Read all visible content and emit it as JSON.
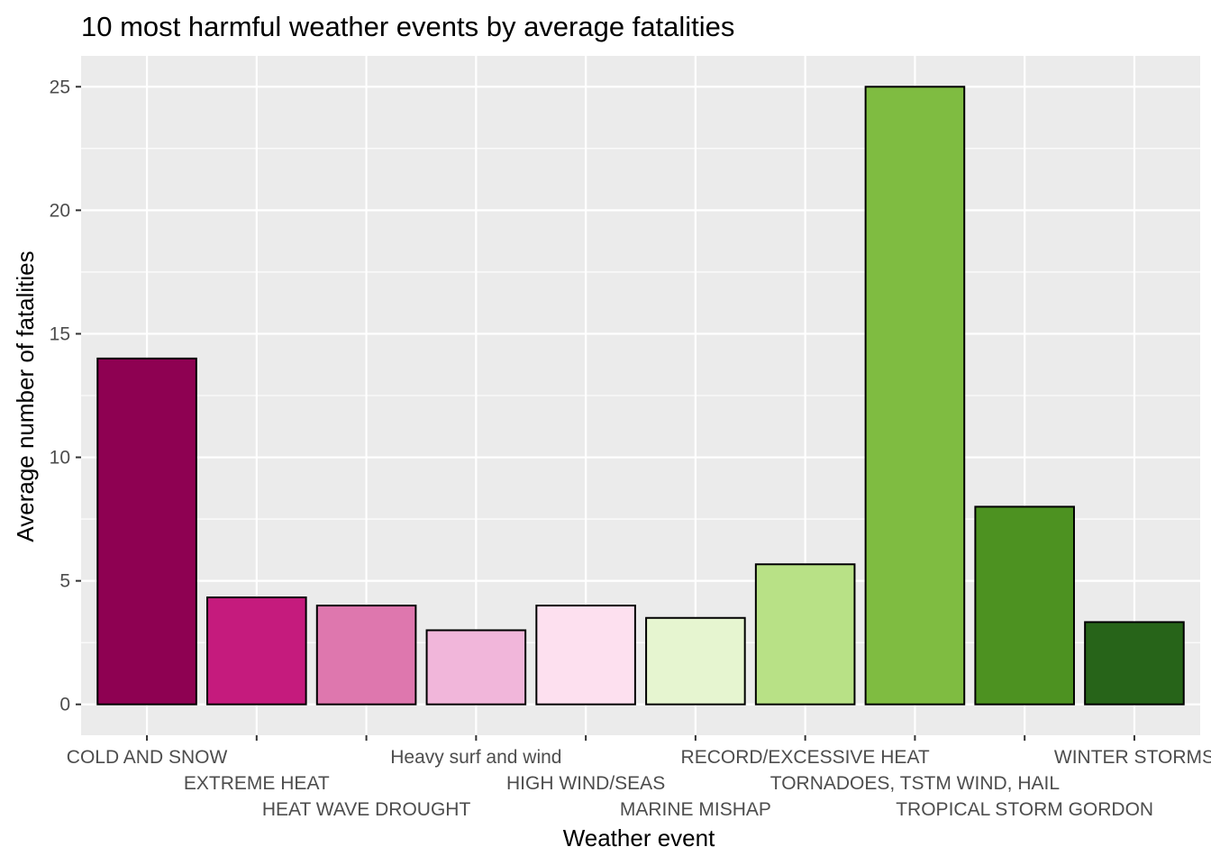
{
  "chart_data": {
    "type": "bar",
    "title": "10 most harmful weather events by average fatalities",
    "xlabel": "Weather event",
    "ylabel": "Average number of fatalities",
    "categories": [
      "COLD AND SNOW",
      "EXTREME HEAT",
      "HEAT WAVE DROUGHT",
      "Heavy surf and wind",
      "HIGH WIND/SEAS",
      "MARINE MISHAP",
      "RECORD/EXCESSIVE HEAT",
      "TORNADOES, TSTM WIND, HAIL",
      "TROPICAL STORM GORDON",
      "WINTER STORMS"
    ],
    "values": [
      14,
      4.33,
      4,
      3,
      4,
      3.5,
      5.67,
      25,
      8,
      3.33
    ],
    "colors": [
      "#8e0152",
      "#c51b7d",
      "#de77ae",
      "#f1b6da",
      "#fde0ef",
      "#e6f5d0",
      "#b8e186",
      "#7fbc41",
      "#4d9221",
      "#276419"
    ],
    "yticks": [
      0,
      5,
      10,
      15,
      20,
      25
    ],
    "ylim": [
      -1.25,
      26.25
    ],
    "grid": true,
    "panel_background": "#ebebeb",
    "bar_outline": "#000000"
  }
}
